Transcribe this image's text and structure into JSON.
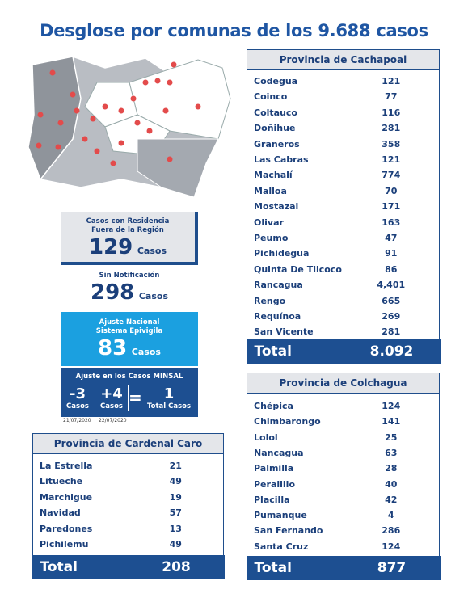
{
  "title": "Desglose por comunas de los 9.688 casos",
  "residencia": {
    "lines": [
      "Casos con Residencia",
      "Fuera de la Región"
    ],
    "value": "129",
    "unit": "Casos"
  },
  "sin_notificacion": {
    "label": "Sin Notificación",
    "value": "298",
    "unit": "Casos"
  },
  "ajuste_nacional": {
    "lines": [
      "Ajuste Nacional",
      "Sistema Epivigila"
    ],
    "value": "83",
    "unit": "Casos"
  },
  "ajuste_minsal": {
    "title": "Ajuste en los Casos MINSAL",
    "a": "-3",
    "a_unit": "Casos",
    "b": "+4",
    "b_unit": "Casos",
    "op": "=",
    "total": "1",
    "total_unit": "Total Casos",
    "date_a": "21/07/2020",
    "date_b": "22/07/2020"
  },
  "cachapoal": {
    "title": "Provincia de Cachapoal",
    "rows": [
      [
        "Codegua",
        "121"
      ],
      [
        "Coinco",
        "77"
      ],
      [
        "Coltauco",
        "116"
      ],
      [
        "Doñihue",
        "281"
      ],
      [
        "Graneros",
        "358"
      ],
      [
        "Las Cabras",
        "121"
      ],
      [
        "Machalí",
        "774"
      ],
      [
        "Malloa",
        "70"
      ],
      [
        "Mostazal",
        "171"
      ],
      [
        "Olivar",
        "163"
      ],
      [
        "Peumo",
        "47"
      ],
      [
        "Pichidegua",
        "91"
      ],
      [
        "Quinta De Tilcoco",
        "86"
      ],
      [
        "Rancagua",
        "4,401"
      ],
      [
        "Rengo",
        "665"
      ],
      [
        "Requínoa",
        "269"
      ],
      [
        "San Vicente",
        "281"
      ]
    ],
    "total_label": "Total",
    "total": "8.092"
  },
  "colchagua": {
    "title": "Provincia de Colchagua",
    "rows": [
      [
        "Chépica",
        "124"
      ],
      [
        "Chimbarongo",
        "141"
      ],
      [
        "Lolol",
        "25"
      ],
      [
        "Nancagua",
        "63"
      ],
      [
        "Palmilla",
        "28"
      ],
      [
        "Peralillo",
        "40"
      ],
      [
        "Placilla",
        "42"
      ],
      [
        "Pumanque",
        "4"
      ],
      [
        "San Fernando",
        "286"
      ],
      [
        "Santa Cruz",
        "124"
      ]
    ],
    "total_label": "Total",
    "total": "877"
  },
  "cardenal_caro": {
    "title": "Provincia de Cardenal Caro",
    "rows": [
      [
        "La Estrella",
        "21"
      ],
      [
        "Litueche",
        "49"
      ],
      [
        "Marchigue",
        "19"
      ],
      [
        "Navidad",
        "57"
      ],
      [
        "Paredones",
        "13"
      ],
      [
        "Pichilemu",
        "49"
      ]
    ],
    "total_label": "Total",
    "total": "208"
  }
}
